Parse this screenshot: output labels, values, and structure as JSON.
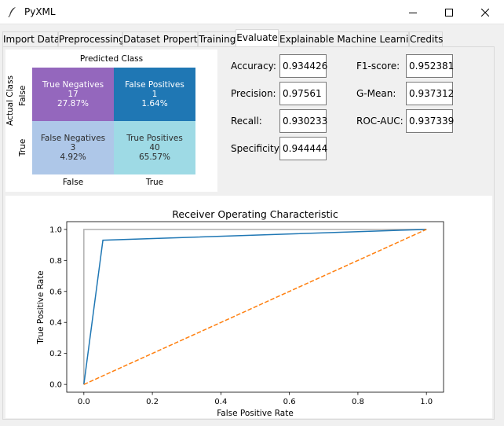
{
  "window": {
    "title": "PyXML"
  },
  "tabs": [
    {
      "label": "Import Data"
    },
    {
      "label": "Preprocessing"
    },
    {
      "label": "Dataset Property"
    },
    {
      "label": "Training"
    },
    {
      "label": "Evaluate"
    },
    {
      "label": "Explainable Machine Learning"
    },
    {
      "label": "Credits"
    }
  ],
  "active_tab": "Evaluate",
  "confusion_matrix": {
    "title": "Predicted Class",
    "ylabel": "Actual Class",
    "row_ticks": [
      "False",
      "True"
    ],
    "col_ticks": [
      "False",
      "True"
    ],
    "cells": [
      {
        "name": "True Negatives",
        "count": "17",
        "percent": "27.87%",
        "color": "#9467bd"
      },
      {
        "name": "False Positives",
        "count": "1",
        "percent": "1.64%",
        "color": "#1f77b4"
      },
      {
        "name": "False Negatives",
        "count": "3",
        "percent": "4.92%",
        "color": "#aec7e8"
      },
      {
        "name": "True Positives",
        "count": "40",
        "percent": "65.57%",
        "color": "#9edae5"
      }
    ]
  },
  "metrics": {
    "accuracy": {
      "label": "Accuracy:",
      "value": "0.934426"
    },
    "precision": {
      "label": "Precision:",
      "value": "0.97561"
    },
    "recall": {
      "label": "Recall:",
      "value": "0.930233"
    },
    "specificity": {
      "label": "Specificity:",
      "value": "0.944444"
    },
    "f1": {
      "label": "F1-score:",
      "value": "0.952381"
    },
    "gmean": {
      "label": "G-Mean:",
      "value": "0.937312"
    },
    "rocauc": {
      "label": "ROC-AUC:",
      "value": "0.937339"
    }
  },
  "chart_data": {
    "type": "line",
    "title": "Receiver Operating Characteristic",
    "xlabel": "False Positive Rate",
    "ylabel": "True Positive Rate",
    "xlim": [
      -0.05,
      1.05
    ],
    "ylim": [
      -0.05,
      1.05
    ],
    "xticks": [
      "0.0",
      "0.2",
      "0.4",
      "0.6",
      "0.8",
      "1.0"
    ],
    "yticks": [
      "0.0",
      "0.2",
      "0.4",
      "0.6",
      "0.8",
      "1.0"
    ],
    "grid": false,
    "series": [
      {
        "x": [
          0,
          0,
          1
        ],
        "y": [
          0,
          1,
          1
        ],
        "color": "#b0b0b0",
        "style": "solid"
      },
      {
        "x": [
          0,
          0.0556,
          1
        ],
        "y": [
          0,
          0.9302,
          1
        ],
        "color": "#1f77b4",
        "style": "solid"
      },
      {
        "x": [
          0,
          1
        ],
        "y": [
          0,
          1
        ],
        "color": "#ff7f0e",
        "style": "dashed"
      }
    ]
  }
}
